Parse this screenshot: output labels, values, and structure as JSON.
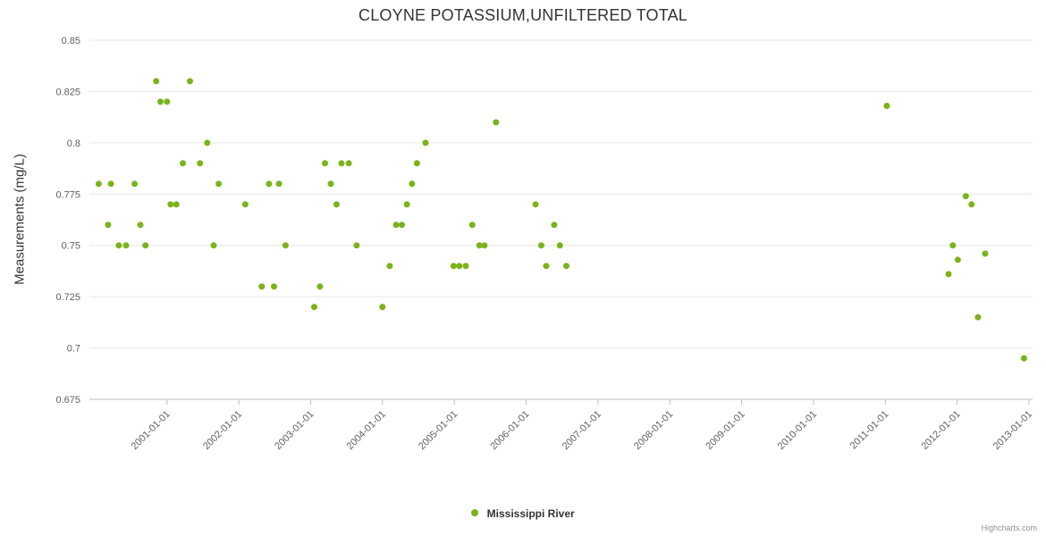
{
  "chart_data": {
    "type": "scatter",
    "title": "CLOYNE POTASSIUM,UNFILTERED TOTAL",
    "ylabel": "Measurements (mg/L)",
    "xlabel": "",
    "ylim": [
      0.675,
      0.85
    ],
    "yticks": [
      {
        "value": 0.675,
        "label": "0.675"
      },
      {
        "value": 0.7,
        "label": "0.7"
      },
      {
        "value": 0.725,
        "label": "0.725"
      },
      {
        "value": 0.75,
        "label": "0.75"
      },
      {
        "value": 0.775,
        "label": "0.775"
      },
      {
        "value": 0.8,
        "label": "0.8"
      },
      {
        "value": 0.825,
        "label": "0.825"
      },
      {
        "value": 0.85,
        "label": "0.85"
      }
    ],
    "xlim": [
      1999.92,
      2013.05
    ],
    "xticks": [
      {
        "value": 2001,
        "label": "2001-01-01"
      },
      {
        "value": 2002,
        "label": "2002-01-01"
      },
      {
        "value": 2003,
        "label": "2003-01-01"
      },
      {
        "value": 2004,
        "label": "2004-01-01"
      },
      {
        "value": 2005,
        "label": "2005-01-01"
      },
      {
        "value": 2006,
        "label": "2006-01-01"
      },
      {
        "value": 2007,
        "label": "2007-01-01"
      },
      {
        "value": 2008,
        "label": "2008-01-01"
      },
      {
        "value": 2009,
        "label": "2009-01-01"
      },
      {
        "value": 2010,
        "label": "2010-01-01"
      },
      {
        "value": 2011,
        "label": "2011-01-01"
      },
      {
        "value": 2012,
        "label": "2012-01-01"
      },
      {
        "value": 2013,
        "label": "2013-01-01"
      }
    ],
    "grid": "horizontal",
    "legend_position": "bottom-center",
    "credits": "Highcharts.com",
    "colors": {
      "title": "#333333",
      "tick_label": "#606060",
      "grid": "#e6e6e6",
      "axis_line": "#c0c0c0",
      "point": "#7bb31a"
    },
    "series": [
      {
        "name": "Mississippi River",
        "color": "#7bb31a",
        "marker": "circle",
        "points": [
          [
            2000.05,
            0.78
          ],
          [
            2000.18,
            0.76
          ],
          [
            2000.22,
            0.78
          ],
          [
            2000.33,
            0.75
          ],
          [
            2000.43,
            0.75
          ],
          [
            2000.55,
            0.78
          ],
          [
            2000.63,
            0.76
          ],
          [
            2000.7,
            0.75
          ],
          [
            2000.85,
            0.83
          ],
          [
            2000.91,
            0.82
          ],
          [
            2001.0,
            0.82
          ],
          [
            2001.05,
            0.77
          ],
          [
            2001.13,
            0.77
          ],
          [
            2001.22,
            0.79
          ],
          [
            2001.32,
            0.83
          ],
          [
            2001.46,
            0.79
          ],
          [
            2001.56,
            0.8
          ],
          [
            2001.65,
            0.75
          ],
          [
            2001.72,
            0.78
          ],
          [
            2002.09,
            0.77
          ],
          [
            2002.32,
            0.73
          ],
          [
            2002.42,
            0.78
          ],
          [
            2002.49,
            0.73
          ],
          [
            2002.56,
            0.78
          ],
          [
            2002.65,
            0.75
          ],
          [
            2003.05,
            0.72
          ],
          [
            2003.13,
            0.73
          ],
          [
            2003.2,
            0.79
          ],
          [
            2003.28,
            0.78
          ],
          [
            2003.36,
            0.77
          ],
          [
            2003.43,
            0.79
          ],
          [
            2003.53,
            0.79
          ],
          [
            2003.64,
            0.75
          ],
          [
            2004.0,
            0.72
          ],
          [
            2004.1,
            0.74
          ],
          [
            2004.19,
            0.76
          ],
          [
            2004.27,
            0.76
          ],
          [
            2004.34,
            0.77
          ],
          [
            2004.41,
            0.78
          ],
          [
            2004.48,
            0.79
          ],
          [
            2004.6,
            0.8
          ],
          [
            2004.99,
            0.74
          ],
          [
            2005.07,
            0.74
          ],
          [
            2005.16,
            0.74
          ],
          [
            2005.25,
            0.76
          ],
          [
            2005.35,
            0.75
          ],
          [
            2005.42,
            0.75
          ],
          [
            2005.58,
            0.81
          ],
          [
            2006.13,
            0.77
          ],
          [
            2006.21,
            0.75
          ],
          [
            2006.28,
            0.74
          ],
          [
            2006.39,
            0.76
          ],
          [
            2006.47,
            0.75
          ],
          [
            2006.56,
            0.74
          ],
          [
            2011.02,
            0.818
          ],
          [
            2011.88,
            0.736
          ],
          [
            2011.94,
            0.75
          ],
          [
            2012.01,
            0.743
          ],
          [
            2012.12,
            0.774
          ],
          [
            2012.2,
            0.77
          ],
          [
            2012.29,
            0.715
          ],
          [
            2012.39,
            0.746
          ],
          [
            2012.93,
            0.695
          ]
        ]
      }
    ]
  }
}
